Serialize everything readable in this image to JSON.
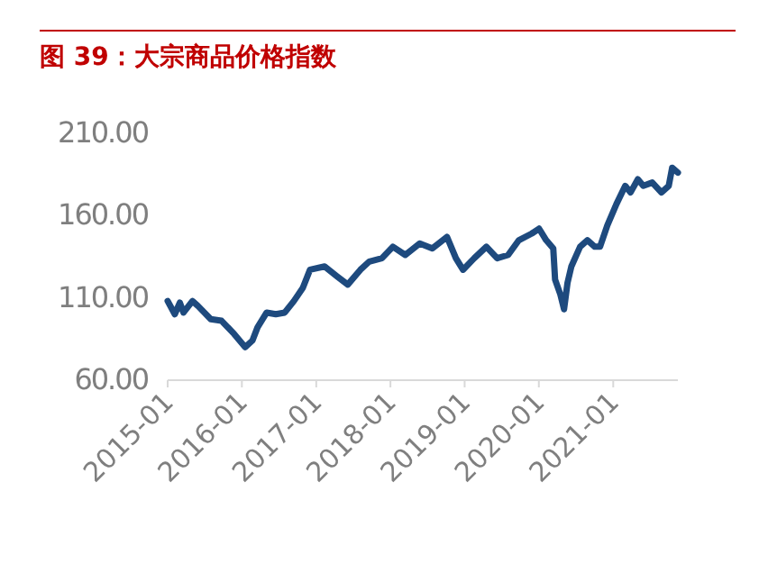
{
  "chart_data": {
    "type": "line",
    "title": "图 39：大宗商品价格指数",
    "color": "#1e4a7e",
    "x": [
      "2015-01-01",
      "2015-02-05",
      "2015-03-02",
      "2015-03-20",
      "2015-05-03",
      "2015-05-30",
      "2015-08-01",
      "2015-09-23",
      "2015-11-24",
      "2016-01-17",
      "2016-02-22",
      "2016-03-18",
      "2016-05-02",
      "2016-06-16",
      "2016-07-30",
      "2016-09-13",
      "2016-10-27",
      "2016-12-01",
      "2017-02-11",
      "2017-04-13",
      "2017-06-05",
      "2017-08-06",
      "2017-09-19",
      "2017-11-20",
      "2018-01-13",
      "2018-03-15",
      "2018-05-25",
      "2018-07-26",
      "2018-10-06",
      "2018-11-19",
      "2018-12-24",
      "2019-02-17",
      "2019-04-18",
      "2019-06-10",
      "2019-08-03",
      "2019-09-25",
      "2019-11-27",
      "2020-01-02",
      "2020-02-06",
      "2020-03-12",
      "2020-03-21",
      "2020-04-16",
      "2020-05-04",
      "2020-05-21",
      "2020-06-09",
      "2020-07-22",
      "2020-08-27",
      "2020-10-02",
      "2020-10-28",
      "2020-12-03",
      "2021-01-17",
      "2021-03-01",
      "2021-03-27",
      "2021-05-02",
      "2021-05-29",
      "2021-07-12",
      "2021-08-26",
      "2021-10-01",
      "2021-10-18",
      "2021-11-15"
    ],
    "values": [
      107,
      99,
      106,
      100,
      107,
      104,
      96,
      95,
      87,
      79,
      83,
      91,
      100,
      99,
      100,
      107,
      115,
      126,
      128,
      122,
      117,
      126,
      131,
      133,
      140,
      135,
      142,
      139,
      146,
      133,
      126,
      133,
      140,
      133,
      135,
      144,
      148,
      151,
      144,
      139,
      120,
      111,
      102,
      118,
      128,
      140,
      144,
      140,
      140,
      153,
      166,
      177,
      173,
      181,
      177,
      179,
      173,
      177,
      188,
      185
    ],
    "xlim": [
      "2015-01-01",
      "2021-11-15"
    ],
    "xticks": [
      "2015-01",
      "2016-01",
      "2017-01",
      "2018-01",
      "2019-01",
      "2020-01",
      "2021-01"
    ],
    "ylim": [
      60,
      210
    ],
    "yticks": [
      {
        "value": 60,
        "label": "60.00"
      },
      {
        "value": 110,
        "label": "110.00"
      },
      {
        "value": 160,
        "label": "160.00"
      },
      {
        "value": 210,
        "label": "210.00"
      }
    ]
  }
}
